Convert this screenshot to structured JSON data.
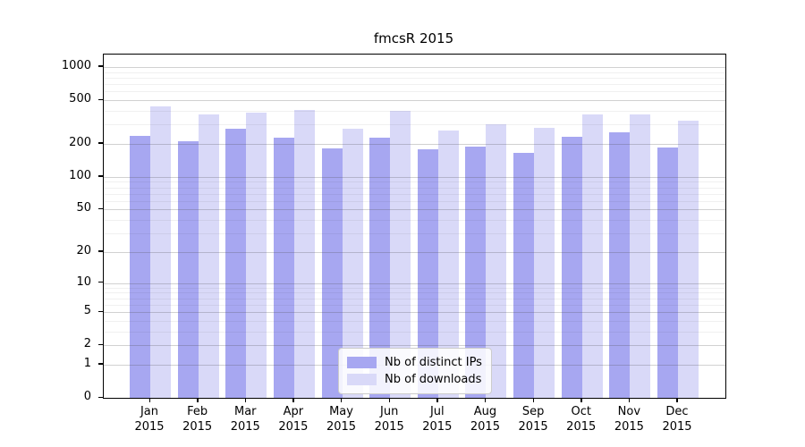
{
  "chart_data": {
    "type": "bar",
    "title": "fmcsR 2015",
    "categories": [
      "Jan",
      "Feb",
      "Mar",
      "Apr",
      "May",
      "Jun",
      "Jul",
      "Aug",
      "Sep",
      "Oct",
      "Nov",
      "Dec"
    ],
    "category_second_line": "2015",
    "series": [
      {
        "name": "Nb of distinct IPs",
        "color": "#a7a7f1",
        "values": [
          235,
          210,
          275,
          228,
          182,
          228,
          179,
          189,
          166,
          232,
          255,
          185
        ]
      },
      {
        "name": "Nb of downloads",
        "color": "#d9d9f8",
        "values": [
          440,
          370,
          385,
          410,
          275,
          400,
          265,
          302,
          280,
          371,
          368,
          325
        ]
      }
    ],
    "xlabel": "",
    "ylabel": "",
    "y_scale": "log1p",
    "ylim": [
      0,
      1300
    ],
    "y_ticks": [
      1000,
      500,
      200,
      100,
      50,
      20,
      10,
      5,
      2,
      1,
      0
    ],
    "y_minor_ticks": [
      900,
      800,
      700,
      600,
      400,
      300,
      90,
      80,
      70,
      60,
      40,
      30,
      9,
      8,
      7,
      6,
      4,
      3
    ],
    "grid": true,
    "legend_position": "lower center"
  },
  "colors": {
    "background": "#ffffff",
    "axis": "#000000",
    "grid_major": "#c9c9c9",
    "grid_minor": "#ececec",
    "legend_border": "#cccccc"
  }
}
